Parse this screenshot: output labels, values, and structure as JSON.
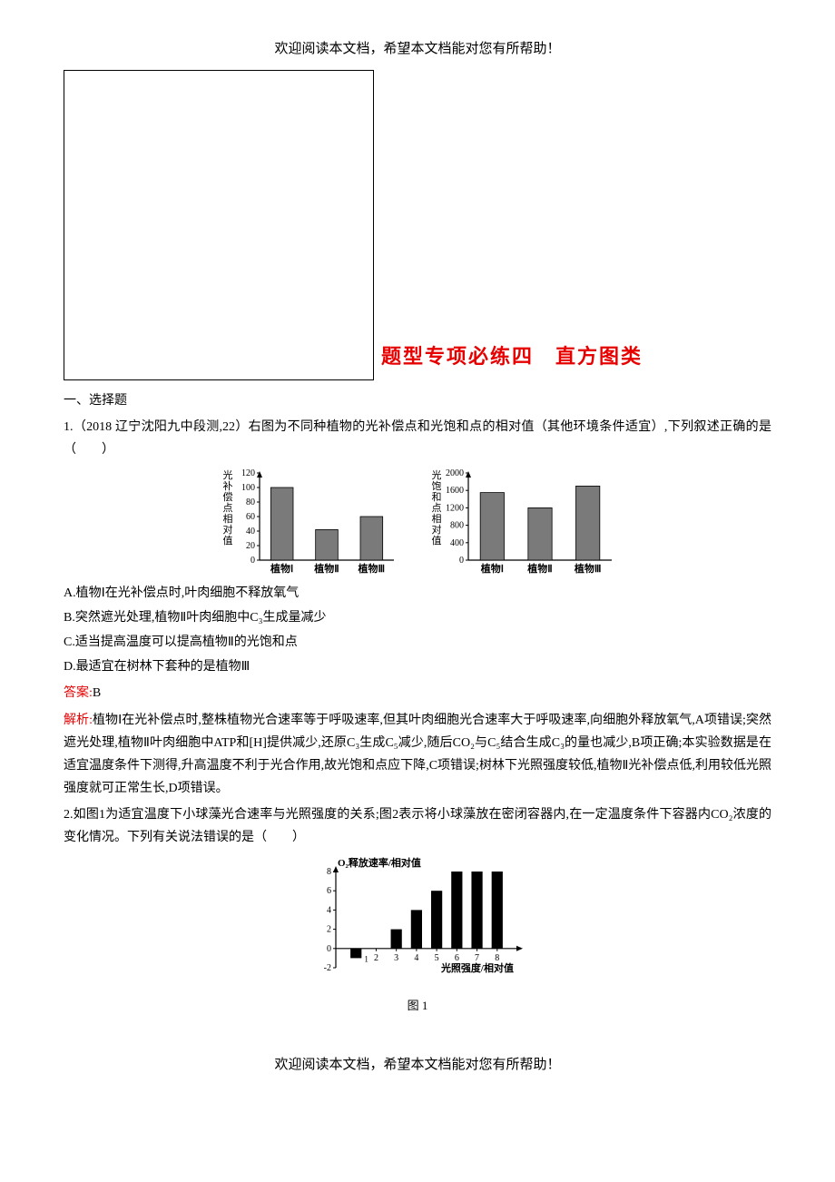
{
  "header_note": "欢迎阅读本文档，希望本文档能对您有所帮助！",
  "footer_note": "欢迎阅读本文档，希望本文档能对您有所帮助！",
  "title": "题型专项必练四　直方图类",
  "section_heading": "一、选择题",
  "q1": {
    "stem": "1.（2018 辽宁沈阳九中段测,22）右图为不同种植物的光补偿点和光饱和点的相对值（其他环境条件适宜）,下列叙述正确的是　　　　（　　）",
    "optA": "A.植物Ⅰ在光补偿点时,叶肉细胞不释放氧气",
    "optB": "B.突然遮光处理,植物Ⅱ叶肉细胞中C₃生成量减少",
    "optC": "C.适当提高温度可以提高植物Ⅱ的光饱和点",
    "optD": "D.最适宜在树林下套种的是植物Ⅲ",
    "answer_label": "答案:",
    "answer_val": "B",
    "solution_label": "解析:",
    "solution_text": "植物Ⅰ在光补偿点时,整株植物光合速率等于呼吸速率,但其叶肉细胞光合速率大于呼吸速率,向细胞外释放氧气,A项错误;突然遮光处理,植物Ⅱ叶肉细胞中ATP和[H]提供减少,还原C₃生成C₅减少,随后CO₂与C₅结合生成C₃的量也减少,B项正确;本实验数据是在适宜温度条件下测得,升高温度不利于光合作用,故光饱和点应下降,C项错误;树林下光照强度较低,植物Ⅱ光补偿点低,利用较低光照强度就可正常生长,D项错误。"
  },
  "chart1_left": {
    "type": "bar",
    "ylabel": "光补偿点相对值",
    "categories": [
      "植物Ⅰ",
      "植物Ⅱ",
      "植物Ⅲ"
    ],
    "values": [
      100,
      42,
      60
    ],
    "ylim": [
      0,
      120
    ],
    "ytick_step": 20,
    "yticks": [
      0,
      20,
      40,
      60,
      80,
      100,
      120
    ],
    "bar_color": "#7a7a7a",
    "bar_border": "#000000",
    "axis_color": "#000000",
    "bar_width_ratio": 0.5
  },
  "chart1_right": {
    "type": "bar",
    "ylabel": "光饱和点相对值",
    "categories": [
      "植物Ⅰ",
      "植物Ⅱ",
      "植物Ⅲ"
    ],
    "values": [
      1550,
      1200,
      1700
    ],
    "ylim": [
      0,
      2000
    ],
    "ytick_step": 400,
    "yticks": [
      0,
      400,
      800,
      1200,
      1600,
      2000
    ],
    "bar_color": "#7a7a7a",
    "bar_border": "#000000",
    "axis_color": "#000000",
    "bar_width_ratio": 0.5
  },
  "q2": {
    "stem": "2.如图1为适宜温度下小球藻光合速率与光照强度的关系;图2表示将小球藻放在密闭容器内,在一定温度条件下容器内CO₂浓度的变化情况。下列有关说法错误的是（　　）",
    "fig1_caption": "图 1"
  },
  "chart2": {
    "type": "bar",
    "ytitle": "O₂释放速率/相对值",
    "xtitle": "光照强度/相对值",
    "x_values": [
      1,
      2,
      3,
      4,
      5,
      6,
      7,
      8
    ],
    "y_values": [
      -1,
      0,
      2,
      4,
      6,
      8,
      8,
      8
    ],
    "x_ticks": [
      2,
      3,
      4,
      5,
      6,
      7,
      8
    ],
    "y_ticks": [
      -2,
      0,
      2,
      4,
      6,
      8
    ],
    "ylim": [
      -2,
      8
    ],
    "xlim": [
      0,
      9
    ],
    "bar_color": "#000000",
    "axis_color": "#000000",
    "bar_width_ratio": 0.55,
    "label_point_x": 1,
    "label_point_y": -1,
    "label_point_text": "1"
  }
}
